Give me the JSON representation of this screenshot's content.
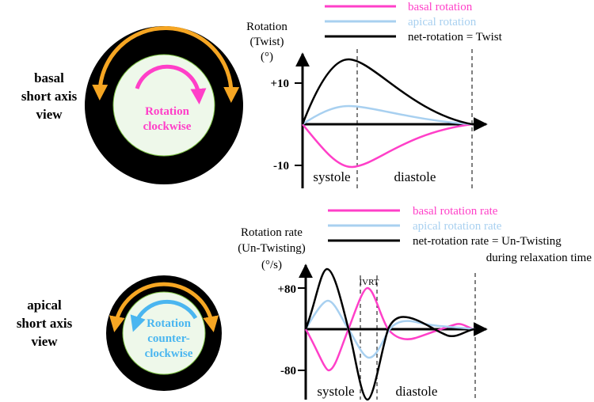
{
  "top_view": {
    "title_lines": [
      "basal",
      "short axis",
      "view"
    ],
    "rotation_lines": [
      "Rotation",
      "clockwise"
    ]
  },
  "bottom_view": {
    "title_lines": [
      "apical",
      "short axis",
      "view"
    ],
    "rotation_lines": [
      "Rotation",
      "counter-",
      "clockwise"
    ]
  },
  "colors": {
    "basal": "#ff3fc8",
    "apical": "#a8d0f0",
    "net": "#000000",
    "arrow_outer": "#f6a623",
    "arrow_inner_apical": "#4ab6f0",
    "ring": "#000000",
    "lumen": "#eef8ea"
  },
  "chart_data": [
    {
      "type": "line",
      "ylabel_lines": [
        "Rotation",
        "(Twist)",
        "(°)"
      ],
      "ytick_labels": [
        "+10",
        "-10"
      ],
      "phase_labels": [
        "systole",
        "diastole"
      ],
      "series": [
        {
          "name": "basal rotation",
          "color_key": "basal"
        },
        {
          "name": "apical rotation",
          "color_key": "apical"
        },
        {
          "name": "net-rotation = Twist",
          "color_key": "net"
        }
      ]
    },
    {
      "type": "line",
      "ylabel_lines": [
        "Rotation rate",
        "(Un-Twisting)",
        "(°/s)"
      ],
      "ytick_labels": [
        "+80",
        "-80"
      ],
      "phase_labels": [
        "systole",
        "diastole"
      ],
      "ivrt_label": "IVRT",
      "series": [
        {
          "name": "basal rotation rate",
          "color_key": "basal"
        },
        {
          "name": "apical rotation rate",
          "color_key": "apical"
        },
        {
          "name": "net-rotation rate = Un-Twisting",
          "color_key": "net"
        }
      ],
      "legend_extra": "during relaxation time"
    }
  ]
}
